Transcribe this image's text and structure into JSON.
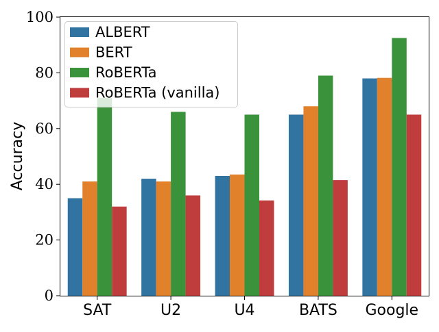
{
  "chart_data": {
    "type": "bar",
    "title": "",
    "xlabel": "",
    "ylabel": "Accuracy",
    "categories": [
      "SAT",
      "U2",
      "U4",
      "BATS",
      "Google"
    ],
    "ylim": [
      0,
      100
    ],
    "yticks": [
      0,
      20,
      40,
      60,
      80,
      100
    ],
    "grid": false,
    "legend_position": "top-left",
    "series": [
      {
        "name": "ALBERT",
        "color": "#3274a1",
        "values": [
          35,
          42,
          43,
          65,
          78
        ]
      },
      {
        "name": "BERT",
        "color": "#e1812c",
        "values": [
          41,
          41,
          43.5,
          68,
          78.2
        ]
      },
      {
        "name": "RoBERTa",
        "color": "#3a923a",
        "values": [
          71,
          66,
          65,
          79,
          92.5
        ]
      },
      {
        "name": "RoBERTa (vanilla)",
        "color": "#c03d3e",
        "values": [
          32,
          36,
          34.2,
          41.5,
          65
        ]
      }
    ]
  }
}
